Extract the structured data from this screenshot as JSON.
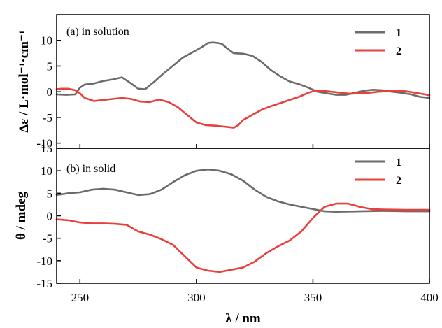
{
  "chart_data": [
    {
      "type": "line",
      "panel_label": "(a) in solution",
      "ylabel": "Δε / L·mol⁻¹·cm⁻¹",
      "xlabel": "",
      "xlim": [
        240,
        400
      ],
      "ylim": [
        -11,
        15
      ],
      "yticks": [
        -10,
        -5,
        0,
        5,
        10
      ],
      "ytick_labels": [
        "-10",
        "-5",
        "0",
        "5",
        "10"
      ],
      "legend_position": "top-right",
      "series": [
        {
          "name": "1",
          "color": "#6b6b6b",
          "x": [
            240,
            244,
            248,
            250,
            252,
            256,
            260,
            264,
            268,
            272,
            275,
            278,
            282,
            286,
            290,
            294,
            298,
            302,
            305,
            307,
            309,
            311,
            313,
            316,
            320,
            324,
            328,
            332,
            336,
            340,
            344,
            348,
            352,
            356,
            360,
            364,
            368,
            372,
            376,
            380,
            384,
            388,
            392,
            396,
            400
          ],
          "y": [
            -0.5,
            -0.6,
            -0.5,
            0.8,
            1.4,
            1.6,
            2.1,
            2.4,
            2.8,
            1.6,
            0.6,
            0.5,
            2.0,
            3.6,
            5.1,
            6.6,
            7.6,
            8.6,
            9.5,
            9.6,
            9.5,
            9.3,
            8.5,
            7.5,
            7.4,
            7.0,
            5.8,
            4.2,
            3.0,
            2.0,
            1.5,
            0.8,
            0.0,
            -0.3,
            -0.6,
            -0.6,
            -0.2,
            0.2,
            0.4,
            0.3,
            0.0,
            -0.2,
            -0.5,
            -1.0,
            -1.2
          ]
        },
        {
          "name": "2",
          "color": "#e8413c",
          "x": [
            240,
            242,
            245,
            248,
            250,
            252,
            256,
            260,
            264,
            268,
            272,
            276,
            280,
            284,
            288,
            292,
            296,
            300,
            304,
            308,
            312,
            316,
            318,
            320,
            324,
            328,
            332,
            336,
            340,
            344,
            348,
            350,
            354,
            358,
            362,
            366,
            370,
            374,
            378,
            382,
            386,
            390,
            394,
            398,
            400
          ],
          "y": [
            0.5,
            0.6,
            0.6,
            0.3,
            -0.3,
            -1.2,
            -1.8,
            -1.6,
            -1.4,
            -1.2,
            -1.4,
            -1.9,
            -2.0,
            -1.5,
            -2.0,
            -3.0,
            -4.5,
            -6.0,
            -6.5,
            -6.6,
            -6.8,
            -7.0,
            -6.5,
            -5.5,
            -4.5,
            -3.5,
            -2.8,
            -2.2,
            -1.6,
            -1.0,
            -0.2,
            0.1,
            0.2,
            0.0,
            -0.2,
            -0.4,
            -0.3,
            -0.2,
            0.0,
            0.1,
            0.2,
            0.1,
            -0.2,
            -0.5,
            -0.7
          ]
        }
      ]
    },
    {
      "type": "line",
      "panel_label": "(b) in solid",
      "ylabel": "θ / mdeg",
      "xlabel": "λ / nm",
      "xlim": [
        240,
        400
      ],
      "ylim": [
        -15,
        15
      ],
      "yticks": [
        -15,
        -10,
        -5,
        0,
        5,
        10,
        15
      ],
      "ytick_labels": [
        "-15",
        "-10",
        "-5",
        "0",
        "5",
        "10",
        "15"
      ],
      "xticks": [
        250,
        300,
        350,
        400
      ],
      "xtick_labels": [
        "250",
        "300",
        "350",
        "400"
      ],
      "legend_position": "top-right",
      "series": [
        {
          "name": "1",
          "color": "#6b6b6b",
          "x": [
            240,
            245,
            250,
            255,
            260,
            265,
            270,
            275,
            280,
            285,
            290,
            295,
            300,
            305,
            310,
            315,
            320,
            325,
            330,
            335,
            340,
            345,
            350,
            355,
            360,
            370,
            380,
            390,
            400
          ],
          "y": [
            4.6,
            5.0,
            5.2,
            5.8,
            6.0,
            5.8,
            5.2,
            4.6,
            4.8,
            5.8,
            7.5,
            9.0,
            10.0,
            10.3,
            10.0,
            9.2,
            7.8,
            5.8,
            4.2,
            3.2,
            2.5,
            2.0,
            1.5,
            1.0,
            0.9,
            1.0,
            1.1,
            1.0,
            1.0
          ]
        },
        {
          "name": "2",
          "color": "#e8413c",
          "x": [
            240,
            245,
            250,
            255,
            260,
            265,
            270,
            275,
            280,
            285,
            290,
            295,
            300,
            305,
            310,
            315,
            320,
            325,
            330,
            335,
            340,
            345,
            350,
            355,
            360,
            365,
            370,
            375,
            380,
            390,
            400
          ],
          "y": [
            -0.8,
            -1.0,
            -1.5,
            -1.7,
            -1.7,
            -1.8,
            -2.0,
            -3.5,
            -4.2,
            -5.2,
            -6.5,
            -9.0,
            -11.5,
            -12.2,
            -12.5,
            -12.0,
            -11.5,
            -10.2,
            -8.3,
            -6.8,
            -5.5,
            -3.5,
            -0.5,
            2.0,
            2.7,
            2.7,
            2.0,
            1.5,
            1.4,
            1.3,
            1.3
          ]
        }
      ]
    }
  ]
}
